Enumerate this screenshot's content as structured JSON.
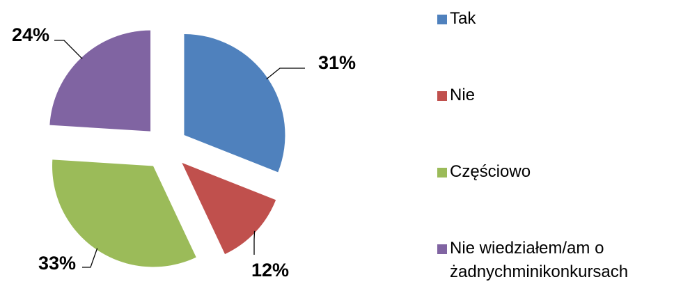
{
  "chart_data": {
    "type": "pie",
    "categories": [
      "Tak",
      "Nie",
      "Częściowo",
      "Nie wiedziałem/am o żadnychminikonkursach"
    ],
    "values": [
      31,
      12,
      33,
      24
    ],
    "value_labels": [
      "31%",
      "12%",
      "33%",
      "24%"
    ],
    "colors": [
      "#4f81bd",
      "#c0504d",
      "#9bbb59",
      "#8064a2"
    ],
    "exploded": true,
    "legend": "right"
  }
}
